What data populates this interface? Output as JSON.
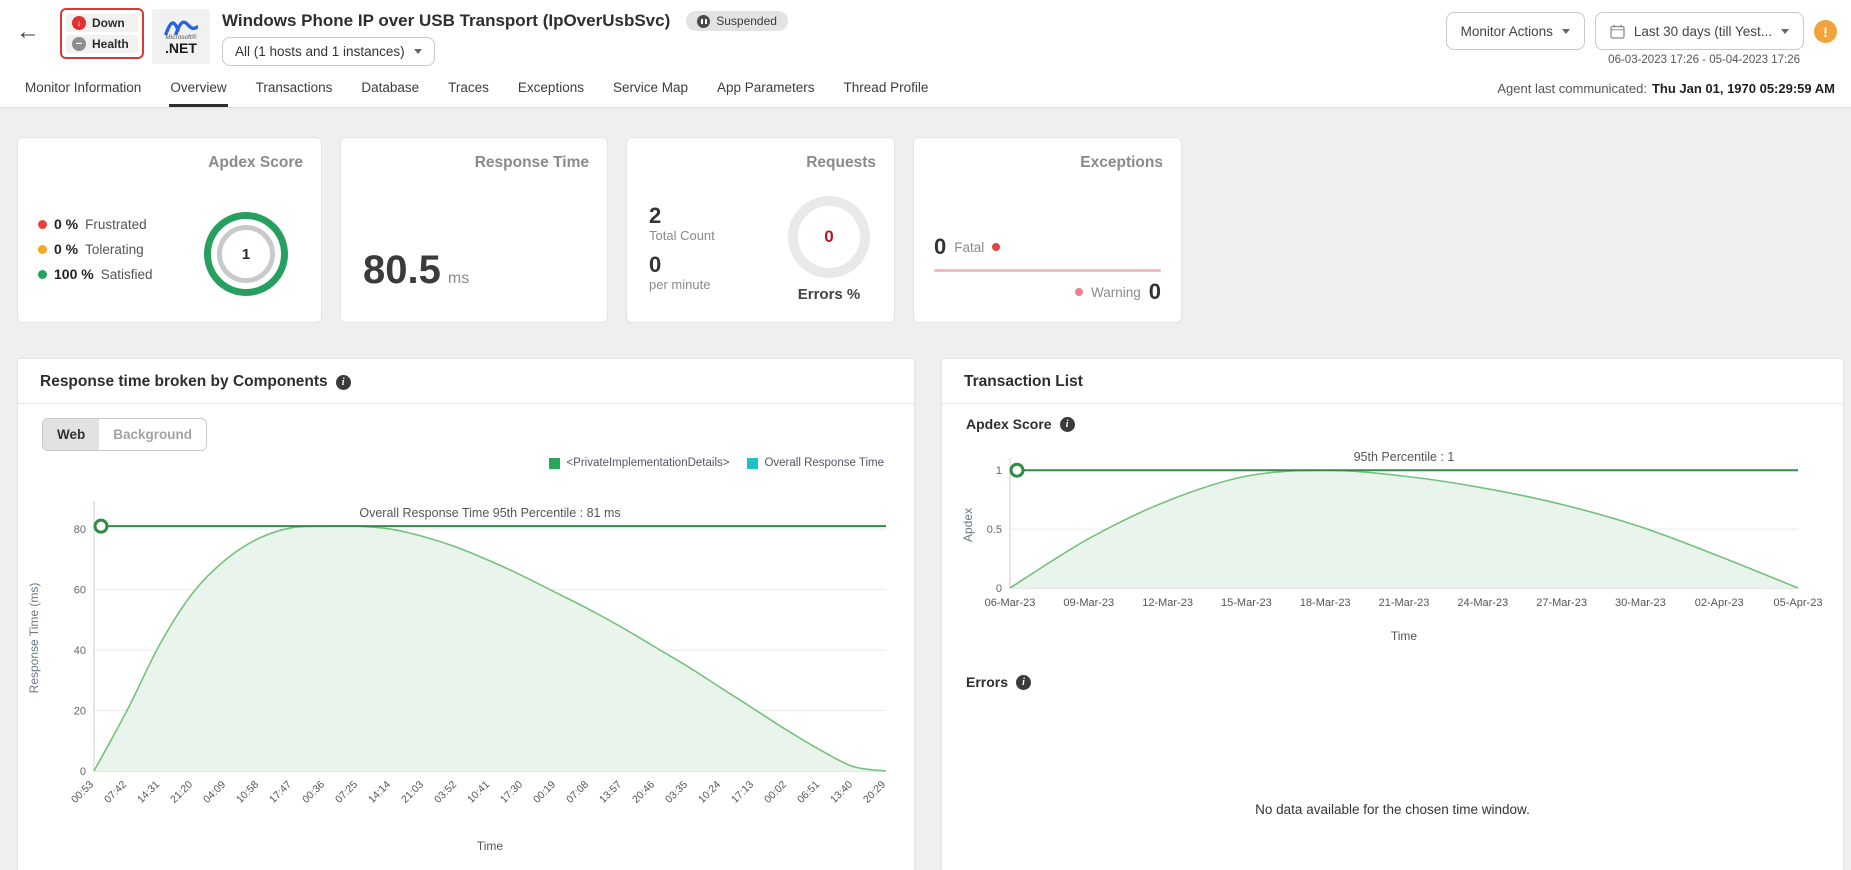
{
  "icons": {
    "back": "←",
    "down_arrow": "↓",
    "minus": "−",
    "alert": "!",
    "info": "i"
  },
  "header": {
    "status": {
      "down": "Down",
      "health": "Health"
    },
    "logo": {
      "brand": "Microsoft®",
      "product": ".NET"
    },
    "title": "Windows Phone IP over USB Transport (IpOverUsbSvc)",
    "suspended_badge": "Suspended",
    "hosts_dropdown": "All (1 hosts and 1 instances)",
    "monitor_actions": "Monitor Actions",
    "date_dropdown": "Last 30 days (till Yest...",
    "date_range": "06-03-2023 17:26 - 05-04-2023 17:26"
  },
  "tabs": {
    "items": [
      "Monitor Information",
      "Overview",
      "Transactions",
      "Database",
      "Traces",
      "Exceptions",
      "Service Map",
      "App Parameters",
      "Thread Profile"
    ],
    "active_index": 1,
    "agent_label": "Agent last communicated:",
    "agent_value": "Thu Jan 01, 1970 05:29:59 AM"
  },
  "cards": {
    "apdex": {
      "title": "Apdex Score",
      "legend": [
        {
          "value": "0 %",
          "label": "Frustrated",
          "color": "#e8413c"
        },
        {
          "value": "0 %",
          "label": "Tolerating",
          "color": "#f5a623"
        },
        {
          "value": "100 %",
          "label": "Satisfied",
          "color": "#27a05f"
        }
      ],
      "gauge_value": "1"
    },
    "response_time": {
      "title": "Response Time",
      "value": "80.5",
      "unit": "ms"
    },
    "requests": {
      "title": "Requests",
      "total_value": "2",
      "total_label": "Total Count",
      "rate_value": "0",
      "rate_label": "per minute",
      "gauge_value": "0",
      "gauge_value_color": "#b11a21",
      "gauge_label": "Errors %"
    },
    "exceptions": {
      "title": "Exceptions",
      "fatal_value": "0",
      "fatal_label": "Fatal",
      "fatal_dot_color": "#e8413c",
      "line_color": "#f5bcbf",
      "warning_dot_color": "#f2808a",
      "warning_label": "Warning",
      "warning_value": "0"
    }
  },
  "left_panel": {
    "title": "Response time broken by Components",
    "toggle": {
      "web": "Web",
      "background": "Background"
    }
  },
  "right_panel": {
    "title": "Transaction List",
    "apdex_label": "Apdex Score",
    "errors_label": "Errors",
    "no_data": "No data available for the chosen time window."
  },
  "chart_data": [
    {
      "type": "area",
      "name": "response-time-broken-by-components",
      "legend": [
        {
          "label": "<PrivateImplementationDetails>",
          "color": "#2aa55c"
        },
        {
          "label": "Overall Response Time",
          "color": "#1dc2c6"
        }
      ],
      "percentile_line": {
        "value": 81,
        "label": "Overall Response Time 95th Percentile : 81 ms"
      },
      "x": [
        "00:53",
        "07:42",
        "14:31",
        "21:20",
        "04:09",
        "10:58",
        "17:47",
        "00:36",
        "07:25",
        "14:14",
        "21:03",
        "03:52",
        "10:41",
        "17:30",
        "00:19",
        "07:08",
        "13:57",
        "20:46",
        "03:35",
        "10:24",
        "17:13",
        "00:02",
        "06:51",
        "13:40",
        "20:29"
      ],
      "values": [
        0,
        20,
        42,
        59,
        70,
        77,
        80.5,
        81,
        81,
        80,
        77.5,
        74,
        69.5,
        64.5,
        59,
        53.5,
        47.5,
        41,
        34.5,
        27.5,
        20.5,
        13.5,
        7,
        1.5,
        0
      ],
      "xlabel": "Time",
      "ylabel": "Response Time (ms)",
      "yticks": [
        0,
        20,
        40,
        60,
        80
      ],
      "ylim": [
        0,
        88
      ],
      "grid": true,
      "legend_position": "top-right",
      "line_color": "#76c07d",
      "fill_color": "#e9f5ec",
      "percentile_color": "#2f8b45"
    },
    {
      "type": "area",
      "name": "transaction-list-apdex-score",
      "percentile_line": {
        "value": 1,
        "label": "95th Percentile : 1"
      },
      "x": [
        "06-Mar-23",
        "09-Mar-23",
        "12-Mar-23",
        "15-Mar-23",
        "18-Mar-23",
        "21-Mar-23",
        "24-Mar-23",
        "27-Mar-23",
        "30-Mar-23",
        "02-Apr-23",
        "05-Apr-23"
      ],
      "values": [
        0,
        0.42,
        0.74,
        0.95,
        1.0,
        0.95,
        0.85,
        0.71,
        0.52,
        0.27,
        0
      ],
      "xlabel": "Time",
      "ylabel": "Apdex",
      "yticks": [
        0,
        0.5,
        1
      ],
      "ylim": [
        0,
        1.07
      ],
      "grid": true,
      "legend_position": "none",
      "line_color": "#76c07d",
      "fill_color": "#e9f5ec",
      "percentile_color": "#2f8b45"
    }
  ]
}
